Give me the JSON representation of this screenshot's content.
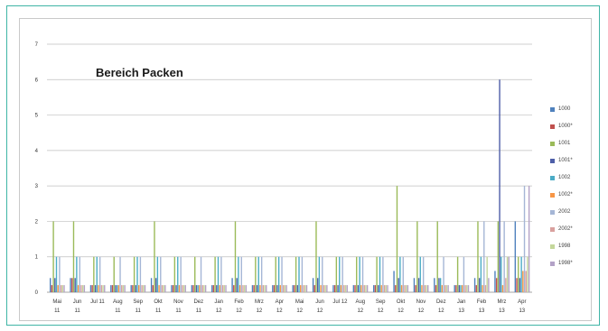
{
  "chart_data": {
    "type": "bar",
    "title": "Bereich Packen",
    "xlabel": "",
    "ylabel": "",
    "ylim": [
      0,
      7
    ],
    "yticks": [
      "0",
      "1",
      "2",
      "3",
      "4",
      "5",
      "6",
      "7"
    ],
    "grid": true,
    "legend_position": "right",
    "categories": [
      [
        "Mai",
        "11"
      ],
      [
        "Jun",
        "11"
      ],
      [
        "Jul 11",
        ""
      ],
      [
        "Aug",
        "11"
      ],
      [
        "Sep",
        "11"
      ],
      [
        "Okt",
        "11"
      ],
      [
        "Nov",
        "11"
      ],
      [
        "Dez",
        "11"
      ],
      [
        "Jan",
        "12"
      ],
      [
        "Feb",
        "12"
      ],
      [
        "Mrz",
        "12"
      ],
      [
        "Apr",
        "12"
      ],
      [
        "Mai",
        "12"
      ],
      [
        "Jun",
        "12"
      ],
      [
        "Jul 12",
        ""
      ],
      [
        "Aug",
        "12"
      ],
      [
        "Sep",
        "12"
      ],
      [
        "Okt",
        "12"
      ],
      [
        "Nov",
        "12"
      ],
      [
        "Dez",
        "12"
      ],
      [
        "Jan",
        "13"
      ],
      [
        "Feb",
        "13"
      ],
      [
        "Mrz",
        "13"
      ],
      [
        "Apr",
        "13"
      ]
    ],
    "series": [
      {
        "name": "1000",
        "color": "#4f81bd",
        "values": [
          0.4,
          0.4,
          0.2,
          0.2,
          0.2,
          0.4,
          0.2,
          0.2,
          0.2,
          0.4,
          0.2,
          0.2,
          0.2,
          0.4,
          0.2,
          0.2,
          0.2,
          0.6,
          0.4,
          0.4,
          0.2,
          0.4,
          0.6,
          2.0
        ]
      },
      {
        "name": "1000*",
        "color": "#c0504d",
        "values": [
          0.2,
          0.4,
          0.2,
          0.2,
          0.2,
          0.2,
          0.2,
          0.2,
          0.2,
          0.2,
          0.2,
          0.2,
          0.2,
          0.2,
          0.2,
          0.2,
          0.2,
          0.2,
          0.2,
          0.2,
          0.2,
          0.2,
          0.4,
          0.4
        ]
      },
      {
        "name": "1001",
        "color": "#9bbb59",
        "values": [
          2,
          2,
          1,
          1,
          1,
          2,
          1,
          1,
          1,
          2,
          1,
          1,
          1,
          2,
          1,
          1,
          1,
          3,
          2,
          2,
          1,
          2,
          2,
          1
        ]
      },
      {
        "name": "1001*",
        "color": "#4e5fa8",
        "values": [
          0.4,
          0.4,
          0.2,
          0.2,
          0.2,
          0.4,
          0.2,
          0.2,
          0.2,
          0.4,
          0.2,
          0.2,
          0.2,
          0.4,
          0.2,
          0.2,
          0.2,
          0.4,
          0.4,
          0.4,
          0.2,
          0.4,
          6.0,
          0.4
        ]
      },
      {
        "name": "1002",
        "color": "#4bacc6",
        "values": [
          1,
          1,
          1,
          0.2,
          1,
          1,
          1,
          0.2,
          1,
          1,
          1,
          1,
          1,
          1,
          1,
          1,
          1,
          1,
          1,
          0.4,
          0.2,
          1,
          1,
          1
        ]
      },
      {
        "name": "1002*",
        "color": "#f79646",
        "values": [
          0.2,
          0.2,
          0.2,
          0.2,
          0.2,
          0.2,
          0.2,
          0.2,
          0.2,
          0.2,
          0.2,
          0.2,
          0.2,
          0.2,
          0.2,
          0.2,
          0.2,
          0.2,
          0.2,
          0.2,
          0.2,
          0.2,
          0.2,
          0.6
        ]
      },
      {
        "name": "2002",
        "color": "#a5b6d6",
        "values": [
          1,
          1,
          1,
          1,
          1,
          1,
          1,
          1,
          1,
          1,
          1,
          1,
          1,
          1,
          1,
          1,
          1,
          1,
          1,
          1,
          1,
          2,
          2,
          3
        ]
      },
      {
        "name": "2002*",
        "color": "#d9a09e",
        "values": [
          0.2,
          0.2,
          0.2,
          0.2,
          0.2,
          0.2,
          0.2,
          0.2,
          0.2,
          0.2,
          0.2,
          0.2,
          0.2,
          0.2,
          0.2,
          0.2,
          0.2,
          0.2,
          0.2,
          0.2,
          0.2,
          0.2,
          0.4,
          0.6
        ]
      },
      {
        "name": "1998",
        "color": "#c4d79b",
        "values": [
          0.2,
          0.2,
          0.2,
          0.2,
          0.2,
          0.2,
          0.2,
          0.2,
          0.2,
          0.2,
          0.2,
          0.2,
          0.2,
          0.2,
          0.2,
          0.2,
          0.2,
          0.2,
          0.2,
          0.2,
          0.2,
          1,
          1,
          1
        ]
      },
      {
        "name": "1998*",
        "color": "#b3a2c7",
        "values": [
          0.2,
          0.2,
          0.2,
          0.2,
          0.2,
          0.2,
          0.2,
          0.2,
          0.2,
          0.2,
          0.2,
          0.2,
          0.2,
          0.2,
          0.2,
          0.2,
          0.2,
          0.2,
          0.2,
          0.2,
          0.2,
          0.4,
          1,
          3
        ]
      }
    ]
  }
}
